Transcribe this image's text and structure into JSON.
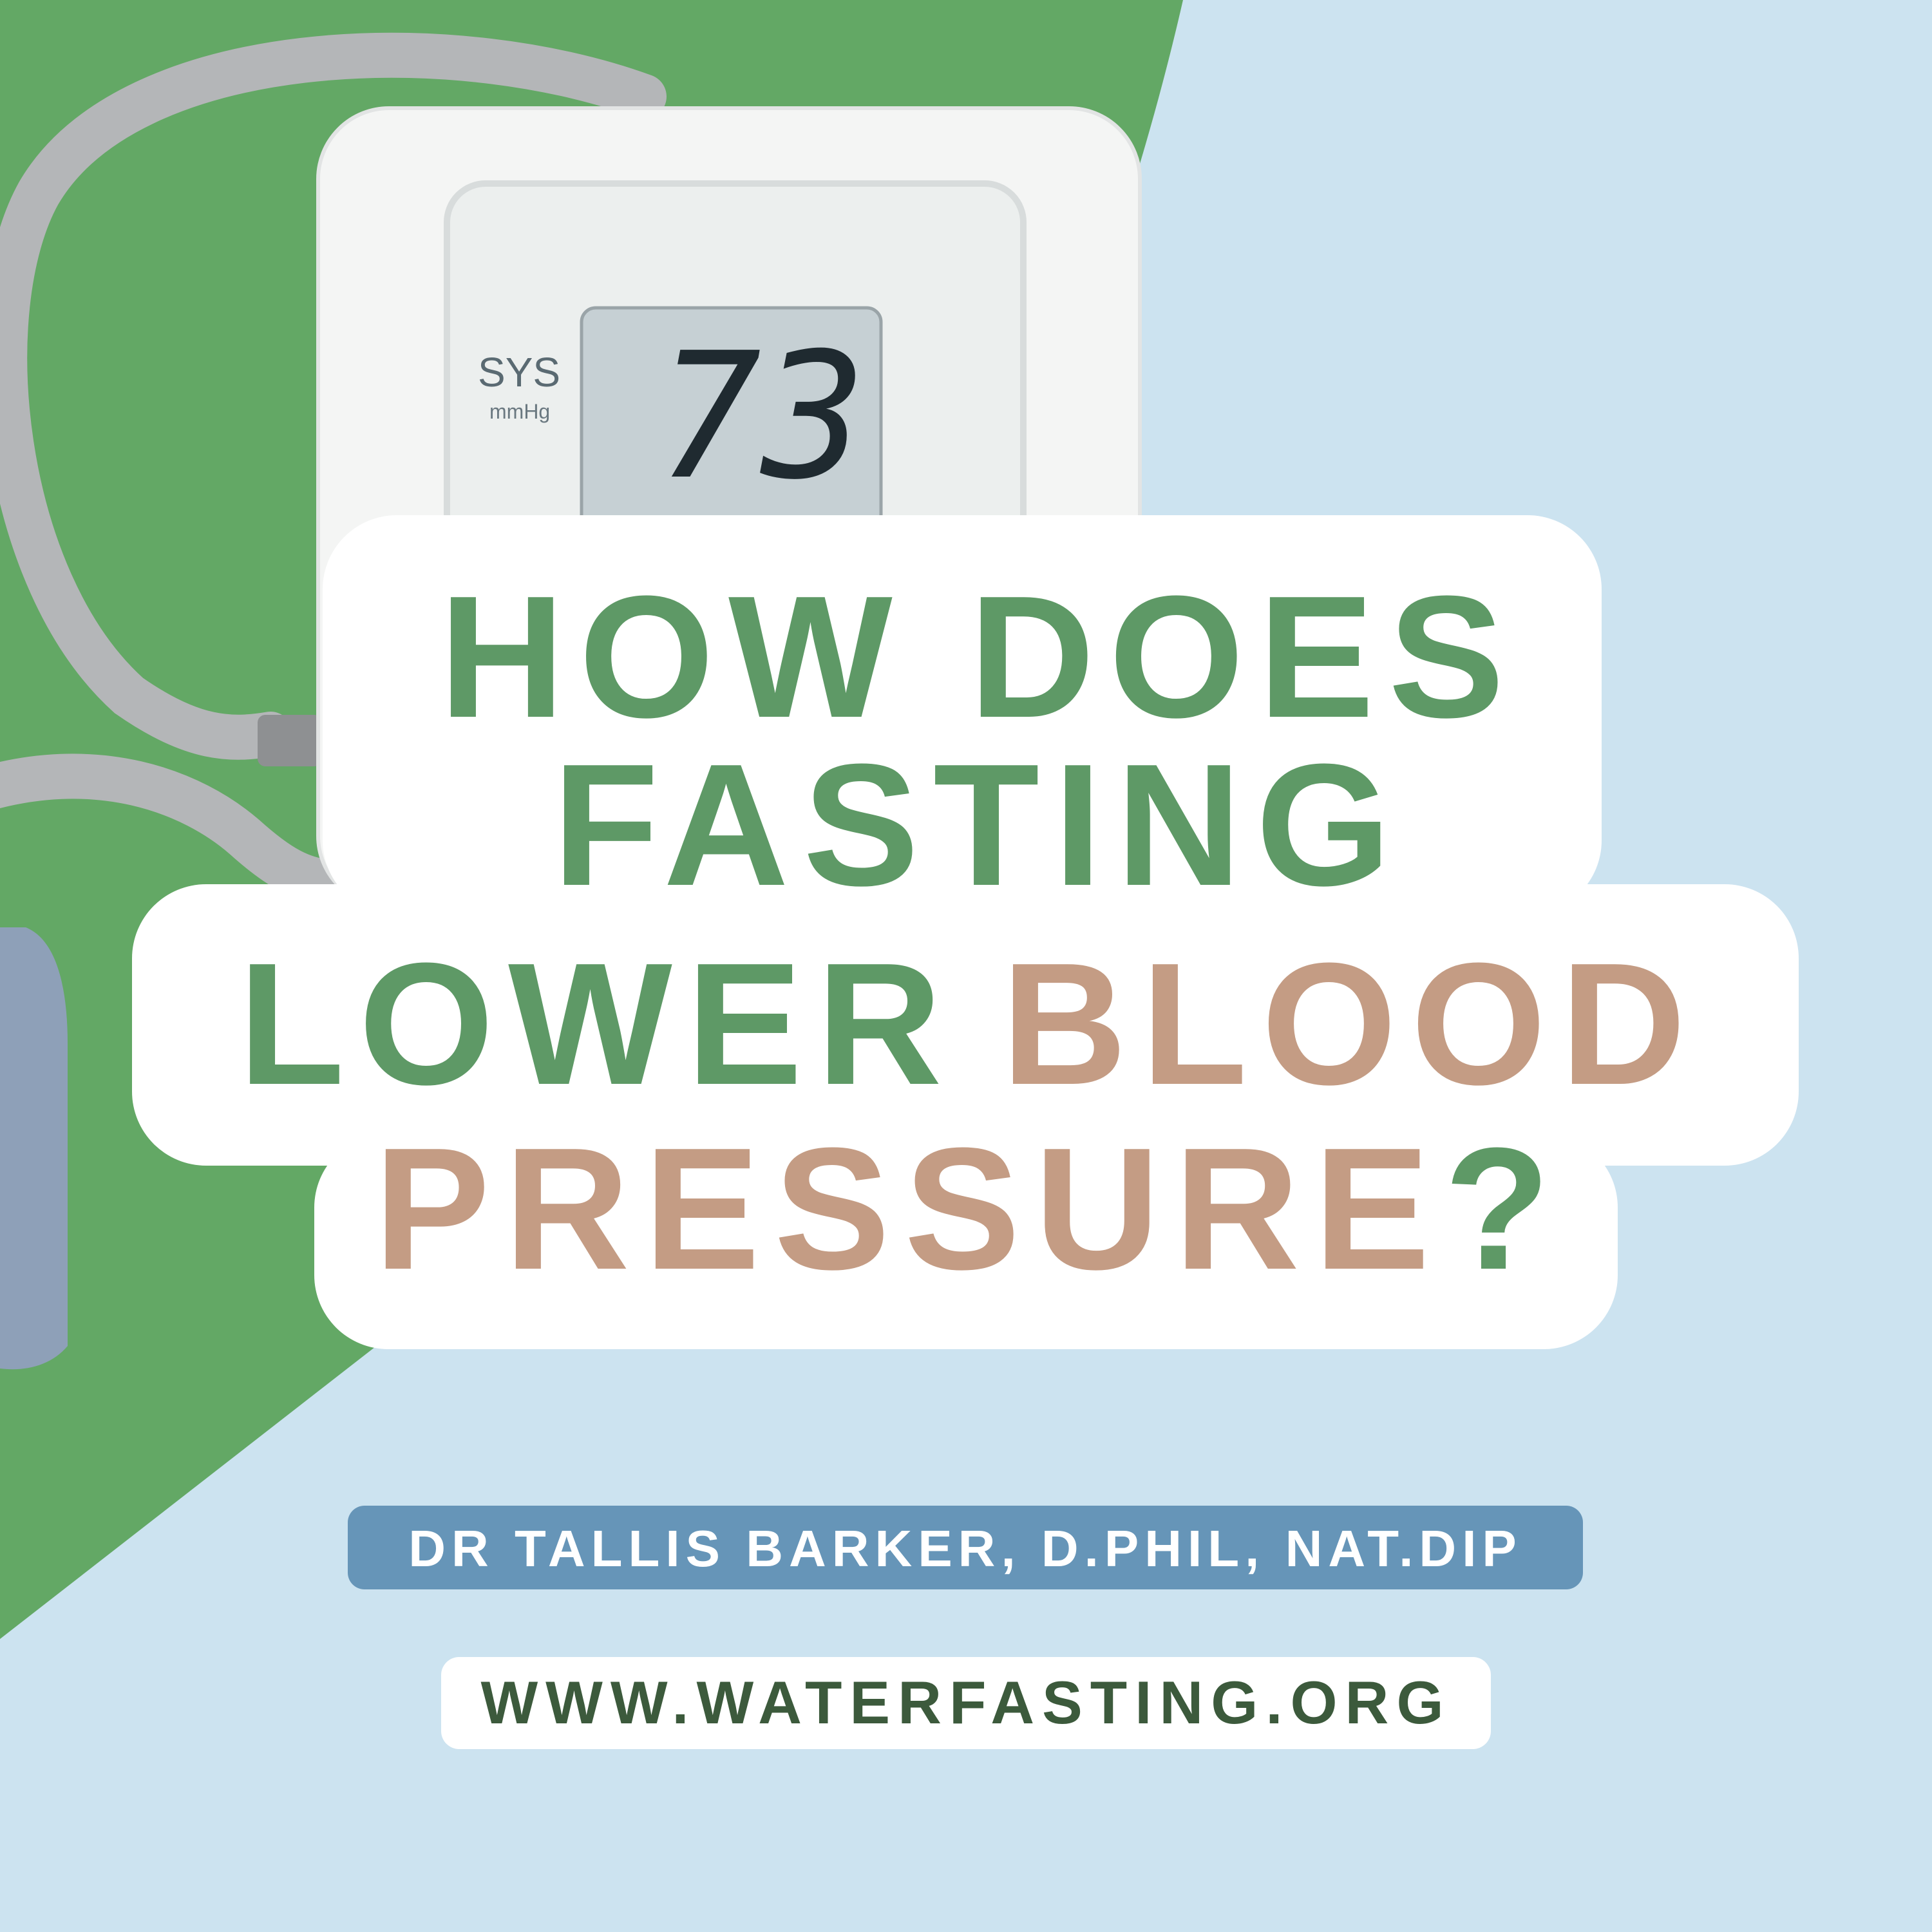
{
  "photo": {
    "labels": [
      "SYS",
      "mmHg"
    ],
    "reading": "73"
  },
  "title": {
    "lines": [
      [
        "HOW DOES"
      ],
      [
        "FASTING"
      ],
      [
        "LOWER",
        "BLOOD"
      ],
      [
        "PRESSURE",
        "?"
      ]
    ]
  },
  "author": "DR TALLIS BARKER, D.PHIL, NAT.DIP",
  "website": "WWW.WATERFASTING.ORG"
}
